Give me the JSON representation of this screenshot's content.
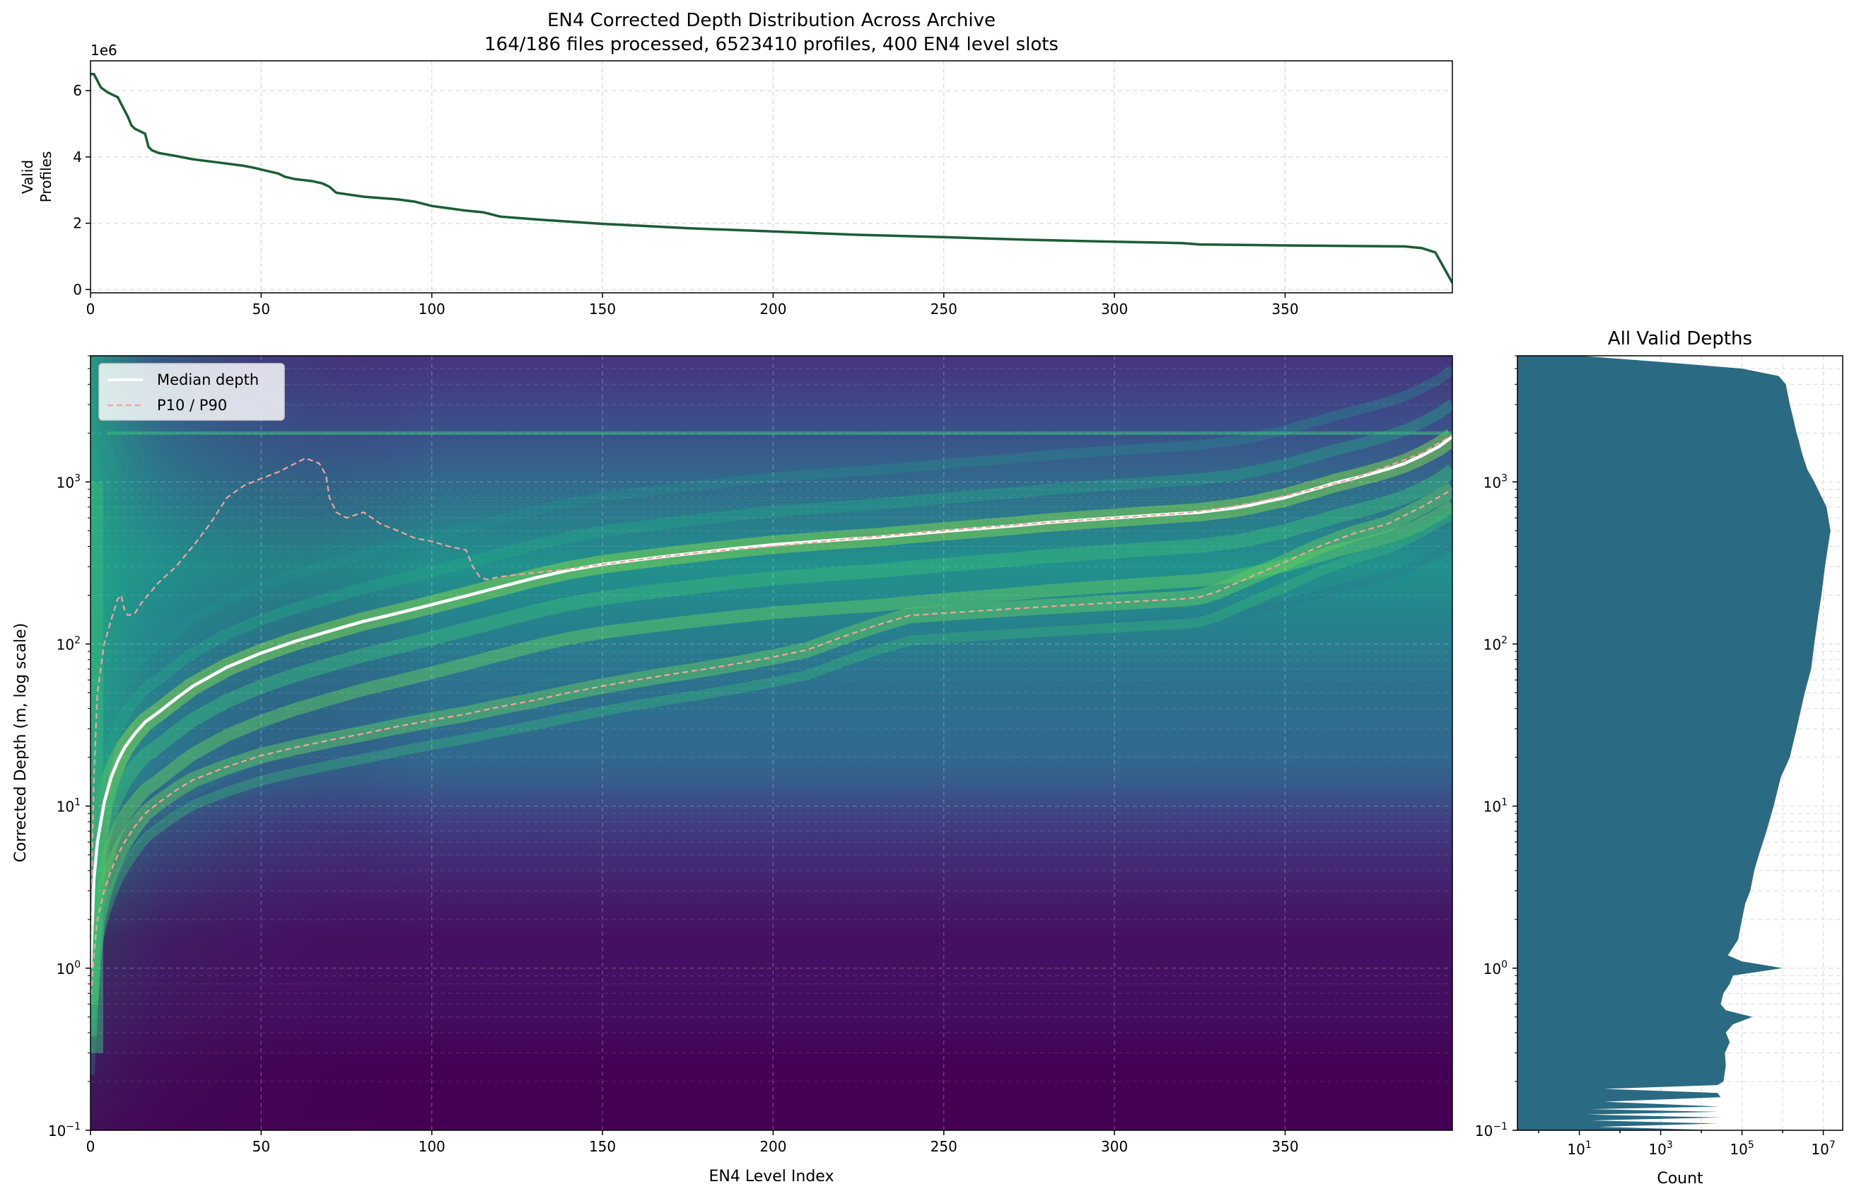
{
  "figure": {
    "title_line1": "EN4 Corrected Depth Distribution Across Archive",
    "title_line2": "164/186 files processed, 6523410 profiles, 400 EN4 level slots"
  },
  "chart_data": [
    {
      "id": "valid_profiles",
      "type": "line",
      "title": "",
      "ylabel_lines": [
        "Valid",
        "Profiles"
      ],
      "y_multiplier_label": "1e6",
      "xlim": [
        0,
        399
      ],
      "ylim": [
        -0.1,
        6.9
      ],
      "xticks": [
        0,
        50,
        100,
        150,
        200,
        250,
        300,
        350
      ],
      "yticks": [
        0,
        2,
        4,
        6
      ],
      "grid": true,
      "color": "#1b5e35",
      "series": [
        {
          "x": [
            0,
            1,
            2,
            3,
            5,
            7,
            8,
            9,
            10,
            11,
            12,
            13,
            15,
            16,
            17,
            18,
            20,
            25,
            30,
            40,
            45,
            48,
            50,
            55,
            57,
            60,
            65,
            68,
            70,
            72,
            80,
            90,
            95,
            100,
            105,
            110,
            115,
            117,
            120,
            130,
            140,
            150,
            160,
            175,
            200,
            225,
            250,
            275,
            300,
            320,
            325,
            350,
            385,
            390,
            394,
            399
          ],
          "y": [
            6.5,
            6.5,
            6.3,
            6.1,
            5.95,
            5.85,
            5.8,
            5.6,
            5.4,
            5.2,
            4.95,
            4.85,
            4.75,
            4.7,
            4.3,
            4.2,
            4.12,
            4.03,
            3.93,
            3.8,
            3.73,
            3.67,
            3.62,
            3.5,
            3.4,
            3.33,
            3.27,
            3.2,
            3.1,
            2.92,
            2.8,
            2.72,
            2.65,
            2.52,
            2.45,
            2.38,
            2.33,
            2.28,
            2.2,
            2.12,
            2.05,
            1.98,
            1.93,
            1.85,
            1.75,
            1.65,
            1.58,
            1.5,
            1.44,
            1.4,
            1.36,
            1.33,
            1.3,
            1.25,
            1.12,
            0.2
          ]
        }
      ]
    },
    {
      "id": "depth_heatmap",
      "type": "heatmap",
      "title": "",
      "xlabel": "EN4 Level Index",
      "ylabel": "Corrected Depth (m, log scale)",
      "yscale": "log",
      "xlim": [
        0,
        399
      ],
      "ylim": [
        0.1,
        6000
      ],
      "xticks": [
        0,
        50,
        100,
        150,
        200,
        250,
        300,
        350
      ],
      "ytick_labels": [
        {
          "value": 0.1,
          "base": "10",
          "exp": "−1"
        },
        {
          "value": 1,
          "base": "10",
          "exp": "0"
        },
        {
          "value": 10,
          "base": "10",
          "exp": "1"
        },
        {
          "value": 100,
          "base": "10",
          "exp": "2"
        },
        {
          "value": 1000,
          "base": "10",
          "exp": "3"
        }
      ],
      "colormap": "viridis",
      "grid": true,
      "legend_position": "top-left",
      "series": [
        {
          "name": "Median depth",
          "color": "#ffffff",
          "style": "solid",
          "x": [
            0,
            1,
            2,
            4,
            6,
            8,
            10,
            13,
            16,
            20,
            25,
            30,
            40,
            50,
            60,
            70,
            80,
            90,
            100,
            110,
            120,
            130,
            140,
            150,
            160,
            170,
            180,
            190,
            200,
            210,
            220,
            230,
            240,
            250,
            260,
            270,
            280,
            290,
            300,
            310,
            320,
            325,
            330,
            335,
            340,
            345,
            350,
            355,
            360,
            365,
            370,
            375,
            380,
            385,
            390,
            395,
            399
          ],
          "y": [
            1.0,
            3.5,
            6,
            10.5,
            15,
            19,
            23,
            28,
            33,
            38,
            46,
            55,
            72,
            88,
            104,
            120,
            138,
            155,
            175,
            198,
            225,
            255,
            285,
            310,
            330,
            350,
            370,
            390,
            410,
            425,
            440,
            455,
            475,
            495,
            515,
            535,
            560,
            580,
            600,
            620,
            640,
            650,
            670,
            690,
            720,
            760,
            800,
            860,
            920,
            990,
            1050,
            1120,
            1200,
            1300,
            1450,
            1650,
            1900
          ]
        },
        {
          "name": "P10 / P90",
          "color": "#f4a3a0",
          "style": "dashed",
          "x": [
            0,
            1,
            2,
            4,
            6,
            8,
            10,
            13,
            16,
            20,
            25,
            30,
            40,
            50,
            60,
            70,
            80,
            90,
            100,
            110,
            120,
            130,
            140,
            150,
            160,
            170,
            180,
            190,
            200,
            210,
            220,
            230,
            240,
            250,
            260,
            270,
            280,
            290,
            300,
            310,
            320,
            325,
            330,
            340,
            350,
            360,
            370,
            380,
            390,
            399
          ],
          "y": [
            0.6,
            1.2,
            2.0,
            3.0,
            4.0,
            5.0,
            6.0,
            7.5,
            9.0,
            10.5,
            12.5,
            14.5,
            17.5,
            20.5,
            23,
            25.5,
            28,
            31,
            34,
            37,
            41,
            45,
            50,
            55,
            60,
            65,
            70,
            76,
            83,
            92,
            110,
            130,
            150,
            155,
            160,
            165,
            170,
            175,
            180,
            185,
            190,
            195,
            210,
            260,
            320,
            400,
            480,
            550,
            700,
            900
          ]
        },
        {
          "name": "",
          "color": "#f4a3a0",
          "style": "dashed",
          "x": [
            0,
            1,
            2,
            4,
            6,
            8,
            9,
            10,
            11,
            13,
            15,
            20,
            25,
            30,
            35,
            40,
            45,
            50,
            55,
            60,
            63,
            65,
            67,
            68,
            69,
            70,
            72,
            75,
            80,
            85,
            90,
            95,
            100,
            105,
            110,
            112,
            114,
            116,
            120,
            130,
            140,
            150,
            160,
            170,
            180,
            190,
            200,
            210,
            220,
            230,
            240,
            250,
            260,
            270,
            280,
            290,
            300,
            310,
            320,
            330,
            340,
            350,
            360,
            370,
            380,
            390,
            399
          ],
          "y": [
            1.5,
            15,
            50,
            100,
            140,
            190,
            200,
            160,
            150,
            155,
            180,
            240,
            300,
            400,
            550,
            800,
            950,
            1050,
            1150,
            1300,
            1400,
            1350,
            1300,
            1200,
            1100,
            800,
            650,
            600,
            650,
            550,
            500,
            450,
            430,
            400,
            380,
            300,
            260,
            250,
            260,
            275,
            290,
            310,
            330,
            350,
            370,
            385,
            400,
            420,
            440,
            460,
            480,
            500,
            520,
            540,
            560,
            580,
            600,
            620,
            640,
            680,
            740,
            820,
            920,
            1050,
            1250,
            1500,
            1950
          ]
        }
      ]
    },
    {
      "id": "all_valid_depths",
      "type": "area",
      "title": "All Valid Depths",
      "xlabel": "Count",
      "xscale": "log",
      "yscale": "log",
      "xlim": [
        0.3,
        30000000
      ],
      "ylim": [
        0.1,
        6000
      ],
      "xtick_labels": [
        {
          "value": 10,
          "base": "10",
          "exp": "1"
        },
        {
          "value": 1000,
          "base": "10",
          "exp": "3"
        },
        {
          "value": 100000,
          "base": "10",
          "exp": "5"
        },
        {
          "value": 10000000,
          "base": "10",
          "exp": "7"
        }
      ],
      "ytick_labels": [
        {
          "value": 0.1,
          "base": "10",
          "exp": "−1"
        },
        {
          "value": 1,
          "base": "10",
          "exp": "0"
        },
        {
          "value": 10,
          "base": "10",
          "exp": "1"
        },
        {
          "value": 100,
          "base": "10",
          "exp": "2"
        },
        {
          "value": 1000,
          "base": "10",
          "exp": "3"
        }
      ],
      "grid": true,
      "color": "#2b6a83",
      "series": [
        {
          "depth": [
            0.1,
            0.105,
            0.11,
            0.115,
            0.12,
            0.125,
            0.13,
            0.135,
            0.14,
            0.15,
            0.16,
            0.17,
            0.18,
            0.19,
            0.2,
            0.25,
            0.3,
            0.35,
            0.4,
            0.45,
            0.5,
            0.55,
            0.6,
            0.7,
            0.8,
            0.9,
            1.0,
            1.1,
            1.2,
            1.5,
            2.0,
            2.5,
            3.0,
            4.0,
            5.0,
            7.0,
            10,
            15,
            20,
            30,
            50,
            70,
            100,
            150,
            200,
            300,
            500,
            700,
            1000,
            1200,
            1500,
            1800,
            2000,
            2500,
            3000,
            4000,
            4500,
            5000,
            5500,
            6000
          ],
          "count": [
            30000,
            30,
            25000,
            20,
            30000,
            15,
            25000,
            20,
            28000,
            40,
            30000,
            25000,
            40,
            25000,
            35000,
            40000,
            38000,
            50000,
            40000,
            60000,
            180000,
            40000,
            30000,
            35000,
            50000,
            60000,
            1000000,
            100000,
            45000,
            80000,
            100000,
            120000,
            160000,
            200000,
            260000,
            400000,
            600000,
            900000,
            1500000,
            2200000,
            3500000,
            5000000,
            6000000,
            7500000,
            9000000,
            11000000,
            15000000,
            12000000,
            6000000,
            4000000,
            3000000,
            2500000,
            2200000,
            1800000,
            1500000,
            1200000,
            800000,
            100000,
            1000,
            10
          ]
        }
      ]
    }
  ]
}
